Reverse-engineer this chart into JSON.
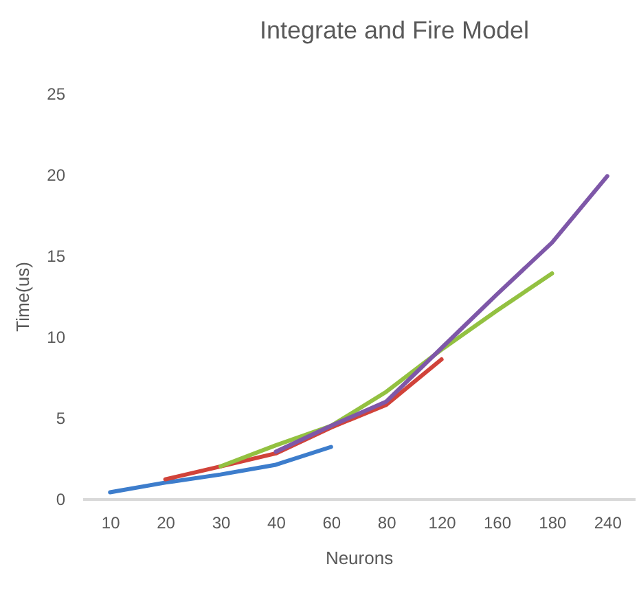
{
  "chart_data": {
    "type": "line",
    "title": "Integrate and Fire Model",
    "xlabel": "Neurons",
    "ylabel": "Time(us)",
    "categories": [
      "10",
      "20",
      "30",
      "40",
      "60",
      "80",
      "120",
      "160",
      "180",
      "240"
    ],
    "series": [
      {
        "color": "#3d7dcc",
        "values": [
          0.4,
          1.0,
          1.5,
          2.1,
          3.2,
          null,
          null,
          null,
          null,
          null
        ]
      },
      {
        "color": "#d1433a",
        "values": [
          null,
          1.2,
          2.0,
          2.8,
          4.4,
          5.8,
          8.6,
          null,
          null,
          null
        ]
      },
      {
        "color": "#93c141",
        "values": [
          null,
          null,
          2.0,
          3.3,
          4.5,
          6.6,
          9.2,
          11.6,
          13.9,
          null
        ]
      },
      {
        "color": "#7e57a8",
        "values": [
          null,
          null,
          null,
          2.9,
          4.5,
          6.0,
          9.3,
          12.6,
          15.8,
          19.9
        ]
      }
    ],
    "ylim": [
      0,
      25
    ],
    "yticks": [
      0,
      5,
      10,
      15,
      20,
      25
    ]
  }
}
